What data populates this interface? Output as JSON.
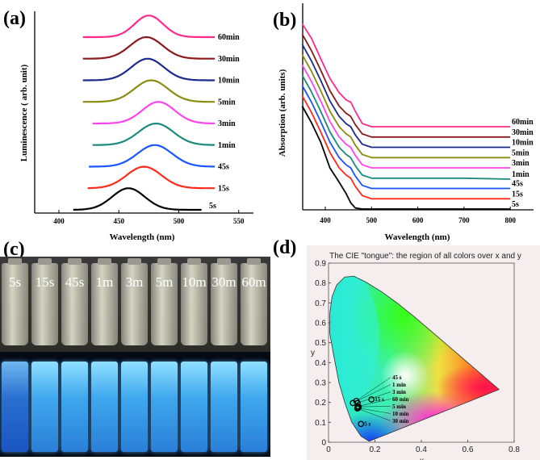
{
  "panel_labels": {
    "a": "(a)",
    "b": "(b)",
    "c": "(c)",
    "d": "(d)"
  },
  "chart_data": [
    {
      "id": "a",
      "type": "line",
      "xlabel": "Wavelength (nm)",
      "ylabel": "Luminescence ( arb. unit)",
      "xlim": [
        380,
        560
      ],
      "xticks": [
        400,
        450,
        500,
        550
      ],
      "yticks": [],
      "grid": false,
      "series": [
        {
          "name": "5s",
          "color": "#000000",
          "peak_nm": 458,
          "fwhm_nm": 32,
          "range_nm": [
            412,
            519
          ],
          "offset": 0
        },
        {
          "name": "15s",
          "color": "#ff2a1a",
          "peak_nm": 471,
          "fwhm_nm": 34,
          "range_nm": [
            424,
            530
          ],
          "offset": 1
        },
        {
          "name": "45s",
          "color": "#1a55ff",
          "peak_nm": 480,
          "fwhm_nm": 34,
          "range_nm": [
            425,
            530
          ],
          "offset": 2
        },
        {
          "name": "1min",
          "color": "#1a8a80",
          "peak_nm": 481,
          "fwhm_nm": 34,
          "range_nm": [
            428,
            530
          ],
          "offset": 3
        },
        {
          "name": "3min",
          "color": "#ff44ee",
          "peak_nm": 483,
          "fwhm_nm": 32,
          "range_nm": [
            428,
            530
          ],
          "offset": 4
        },
        {
          "name": "5min",
          "color": "#8b8b10",
          "peak_nm": 477,
          "fwhm_nm": 33,
          "range_nm": [
            420,
            530
          ],
          "offset": 5
        },
        {
          "name": "10min",
          "color": "#1a2a90",
          "peak_nm": 474,
          "fwhm_nm": 32,
          "range_nm": [
            420,
            530
          ],
          "offset": 6
        },
        {
          "name": "30min",
          "color": "#8b1a1a",
          "peak_nm": 473,
          "fwhm_nm": 32,
          "range_nm": [
            420,
            530
          ],
          "offset": 7
        },
        {
          "name": "60min",
          "color": "#ff2a8a",
          "peak_nm": 475,
          "fwhm_nm": 28,
          "range_nm": [
            420,
            530
          ],
          "offset": 8
        }
      ]
    },
    {
      "id": "b",
      "type": "line",
      "xlabel": "Wavelength (nm)",
      "ylabel": "Absorption (arb. units)",
      "xlim": [
        350,
        850
      ],
      "ylim": [
        0,
        20
      ],
      "xticks": [
        400,
        500,
        600,
        700,
        800
      ],
      "yticks": [],
      "grid": false,
      "x": [
        350,
        370,
        390,
        410,
        430,
        445,
        455,
        465,
        480,
        500,
        600,
        700,
        800
      ],
      "series": [
        {
          "name": "5s",
          "color": "#000000",
          "values": [
            10.0,
            8.4,
            6.5,
            4.0,
            2.6,
            1.5,
            0.6,
            0.1,
            0,
            0,
            0,
            0,
            0
          ]
        },
        {
          "name": "15s",
          "color": "#ff2a1a",
          "values": [
            11.0,
            9.4,
            7.5,
            5.5,
            4.0,
            3.3,
            3.0,
            2.2,
            1.3,
            1.0,
            1.0,
            1.0,
            1.0
          ]
        },
        {
          "name": "45s",
          "color": "#1a55ff",
          "values": [
            12.0,
            10.4,
            8.5,
            6.5,
            5.0,
            4.3,
            4.0,
            3.2,
            2.3,
            2.0,
            2.0,
            2.0,
            2.0
          ]
        },
        {
          "name": "1min",
          "color": "#1a8a80",
          "values": [
            13.0,
            11.4,
            9.5,
            7.5,
            6.0,
            5.3,
            5.0,
            4.2,
            3.3,
            3.0,
            3.0,
            3.0,
            2.9
          ]
        },
        {
          "name": "3min",
          "color": "#ff44ee",
          "values": [
            14.0,
            12.4,
            10.5,
            8.5,
            7.0,
            6.3,
            6.0,
            5.2,
            4.3,
            4.0,
            4.0,
            4.0,
            4.0
          ]
        },
        {
          "name": "5min",
          "color": "#8b8b10",
          "values": [
            15.0,
            13.4,
            11.5,
            9.5,
            8.0,
            7.3,
            7.0,
            6.2,
            5.3,
            5.0,
            5.0,
            5.0,
            5.0
          ]
        },
        {
          "name": "10min",
          "color": "#1a2a90",
          "values": [
            16.0,
            14.4,
            12.5,
            10.5,
            9.0,
            8.3,
            8.0,
            7.2,
            6.3,
            6.0,
            6.0,
            6.0,
            6.0
          ]
        },
        {
          "name": "30min",
          "color": "#8b1a1a",
          "values": [
            17.0,
            15.4,
            13.5,
            11.5,
            10.0,
            9.3,
            9.0,
            8.2,
            7.3,
            7.0,
            7.0,
            7.0,
            7.0
          ]
        },
        {
          "name": "60min",
          "color": "#ff2a8a",
          "values": [
            18.0,
            16.6,
            14.6,
            12.7,
            11.3,
            10.6,
            10.4,
            9.5,
            8.3,
            8.0,
            8.0,
            8.0,
            8.0
          ]
        }
      ]
    },
    {
      "id": "d",
      "type": "scatter",
      "title": "The CIE \"tongue\": the region of all colors over x and y",
      "xlabel": "x",
      "ylabel": "y",
      "xlim": [
        0,
        0.8
      ],
      "ylim": [
        0,
        0.9
      ],
      "xticks": [
        "0",
        "0.2",
        "0.4",
        "0.6",
        "0.8"
      ],
      "yticks": [
        "0",
        "0.1",
        "0.2",
        "0.3",
        "0.4",
        "0.5",
        "0.6",
        "0.7",
        "0.8",
        "0.9"
      ],
      "background": "#f6eeee",
      "locus": [
        [
          0.175,
          0.005
        ],
        [
          0.14,
          0.03
        ],
        [
          0.1,
          0.1
        ],
        [
          0.07,
          0.2
        ],
        [
          0.045,
          0.3
        ],
        [
          0.02,
          0.45
        ],
        [
          0.005,
          0.55
        ],
        [
          0.006,
          0.65
        ],
        [
          0.015,
          0.73
        ],
        [
          0.035,
          0.79
        ],
        [
          0.07,
          0.83
        ],
        [
          0.11,
          0.834
        ],
        [
          0.16,
          0.805
        ],
        [
          0.23,
          0.755
        ],
        [
          0.3,
          0.695
        ],
        [
          0.37,
          0.63
        ],
        [
          0.45,
          0.55
        ],
        [
          0.53,
          0.47
        ],
        [
          0.6,
          0.4
        ],
        [
          0.67,
          0.33
        ],
        [
          0.735,
          0.265
        ]
      ],
      "points": [
        {
          "label": "5 s",
          "x": 0.14,
          "y": 0.092
        },
        {
          "label": "15 s",
          "x": 0.185,
          "y": 0.215
        },
        {
          "label": "45 s",
          "x": 0.12,
          "y": 0.208
        },
        {
          "label": "1 min",
          "x": 0.105,
          "y": 0.197
        },
        {
          "label": "3 min",
          "x": 0.125,
          "y": 0.197
        },
        {
          "label": "5 min",
          "x": 0.13,
          "y": 0.178
        },
        {
          "label": "60 min",
          "x": 0.126,
          "y": 0.18
        },
        {
          "label": "10 min",
          "x": 0.128,
          "y": 0.172
        },
        {
          "label": "30 min",
          "x": 0.124,
          "y": 0.17
        }
      ]
    }
  ],
  "photo": {
    "vial_labels": [
      "5s",
      "15s",
      "45s",
      "1m",
      "3m",
      "5m",
      "10m",
      "30m",
      "60m"
    ]
  }
}
